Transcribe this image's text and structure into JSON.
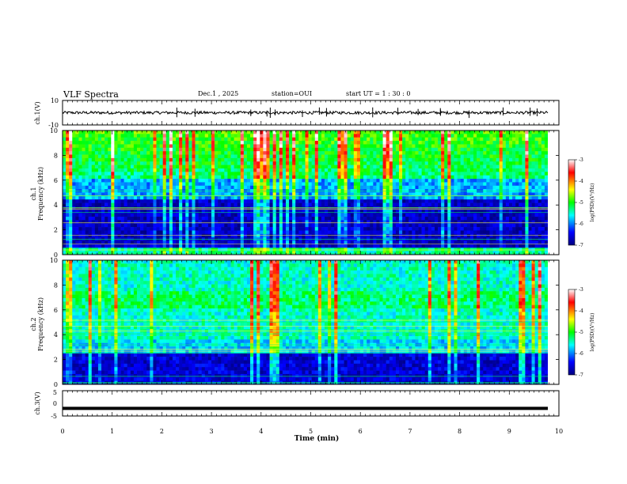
{
  "header": {
    "title": "VLF Spectra",
    "date": "Dec.1 , 2025",
    "station": "station=OUI",
    "start": "start UT =  1 : 30 : 0"
  },
  "chart_data": [
    {
      "type": "line",
      "panel": "ch1-waveform",
      "ylabel": "ch.1(V)",
      "ylim": [
        -10,
        10
      ],
      "ytick_labels": [
        "10",
        "-10"
      ],
      "xlim": [
        0,
        10
      ],
      "baseline": 0,
      "description_values": {
        "mean": 0,
        "noise_amplitude": 1.2,
        "spike_amplitude": 3
      }
    },
    {
      "type": "heatmap",
      "panel": "ch1-spectrogram",
      "ylabel": "ch.1\nFrequency (kHz)",
      "ylabel_line1": "ch.1",
      "ylabel_line2": "Frequency (kHz)",
      "ylim": [
        0,
        10
      ],
      "yticks": [
        "0",
        "2",
        "4",
        "6",
        "8",
        "10"
      ],
      "xlim": [
        0,
        9.8
      ],
      "colorbar": {
        "label": "log(PSD)(V²/Hz)",
        "range": [
          -7,
          -3
        ],
        "ticks": [
          "-3",
          "-4",
          "-5",
          "-6",
          "-7"
        ]
      }
    },
    {
      "type": "heatmap",
      "panel": "ch2-spectrogram",
      "ylabel_line1": "ch.2",
      "ylabel_line2": "Frequency (kHz)",
      "ylim": [
        0,
        10
      ],
      "yticks": [
        "0",
        "2",
        "4",
        "6",
        "8",
        "10"
      ],
      "xlim": [
        0,
        9.8
      ],
      "colorbar": {
        "label": "log(PSD)(V²/Hz)",
        "range": [
          -7,
          -3
        ],
        "ticks": [
          "-3",
          "-4",
          "-5",
          "-6",
          "-7"
        ]
      }
    },
    {
      "type": "line",
      "panel": "ch3-waveform",
      "ylabel": "ch.3(V)",
      "ylim": [
        -5,
        5
      ],
      "ytick_labels": [
        "5",
        "0",
        "-5"
      ],
      "xlim": [
        0,
        10
      ],
      "values_constant": -2
    }
  ],
  "x_axis": {
    "label": "Time (min)",
    "ticks": [
      "0",
      "1",
      "2",
      "3",
      "4",
      "5",
      "6",
      "7",
      "8",
      "9",
      "10"
    ]
  }
}
